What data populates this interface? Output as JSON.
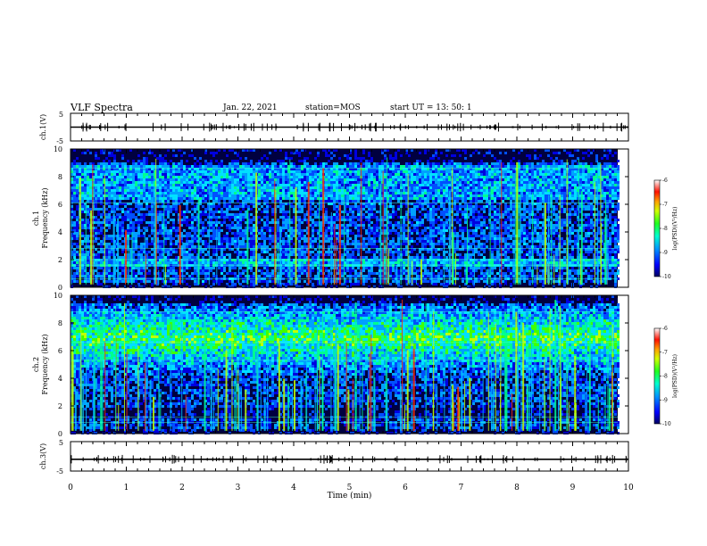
{
  "header": {
    "title": "VLF Spectra",
    "date": "Jan. 22, 2021",
    "station": "station=MOS",
    "start": "start  UT =  13: 50: 1"
  },
  "colors": {
    "colormap": [
      "#000080",
      "#0000ff",
      "#0080ff",
      "#00e0ff",
      "#00ff80",
      "#60ff00",
      "#e0ff00",
      "#ffa000",
      "#ff2000",
      "#ffffff"
    ],
    "background": "#00004a",
    "line": "#000000"
  },
  "chart_data": [
    {
      "id": "ch1-waveform",
      "type": "line",
      "ylabel": "ch.1(V)",
      "ylim": [
        -5,
        5
      ],
      "yticks": [
        "5",
        "-5"
      ],
      "xlim": [
        0,
        10
      ],
      "x": [
        0,
        10
      ],
      "y": [
        0,
        0
      ]
    },
    {
      "id": "ch1-spectrogram",
      "type": "heatmap",
      "ylabel": "ch.1\nFrequency (kHz)",
      "ylabel_top": "ch.1",
      "ylabel_bottom": "Frequency (kHz)",
      "ylim": [
        0,
        10
      ],
      "yticks": [
        "0",
        "2",
        "4",
        "6",
        "8",
        "10"
      ],
      "xlim": [
        0,
        10
      ],
      "colorbar": {
        "label": "log(PSD)(V²/Hz)",
        "range": [
          -10,
          -6
        ],
        "ticks": [
          "-6",
          "-7",
          "-8",
          "-9",
          "-10"
        ]
      }
    },
    {
      "id": "ch2-spectrogram",
      "type": "heatmap",
      "ylabel": "ch.2\nFrequency (kHz)",
      "ylabel_top": "ch.2",
      "ylabel_bottom": "Frequency (kHz)",
      "ylim": [
        0,
        10
      ],
      "yticks": [
        "0",
        "2",
        "4",
        "6",
        "8",
        "10"
      ],
      "xlim": [
        0,
        10
      ],
      "colorbar": {
        "label": "log(PSD)(V²/Hz)",
        "range": [
          -10,
          -6
        ],
        "ticks": [
          "-6",
          "-7",
          "-8",
          "-9",
          "-10"
        ]
      }
    },
    {
      "id": "ch3-waveform",
      "type": "line",
      "ylabel": "ch.3(V)",
      "ylim": [
        -5,
        5
      ],
      "yticks": [
        "5",
        "-5"
      ],
      "xlim": [
        0,
        10
      ],
      "x": [
        0,
        10
      ],
      "y": [
        -1,
        -1
      ]
    }
  ],
  "xaxis": {
    "label": "Time (min)",
    "range": [
      0,
      10
    ],
    "ticks": [
      "0",
      "1",
      "2",
      "3",
      "4",
      "5",
      "6",
      "7",
      "8",
      "9",
      "10"
    ]
  }
}
